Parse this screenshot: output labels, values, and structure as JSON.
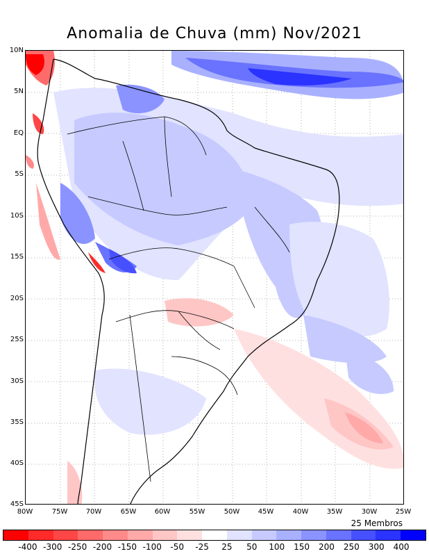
{
  "title": "Anomalia de Chuva (mm) Nov/2021",
  "members_label": "25 Membros",
  "lat_labels": [
    "10N",
    "5N",
    "EQ",
    "5S",
    "10S",
    "15S",
    "20S",
    "25S",
    "30S",
    "35S",
    "40S",
    "45S"
  ],
  "lon_labels": [
    "80W",
    "75W",
    "70W",
    "65W",
    "60W",
    "55W",
    "50W",
    "45W",
    "40W",
    "35W",
    "30W",
    "25W"
  ],
  "colorbar": {
    "labels": [
      "-400",
      "-300",
      "-250",
      "-200",
      "-150",
      "-100",
      "-50",
      "-25",
      "25",
      "50",
      "100",
      "150",
      "200",
      "250",
      "300",
      "400"
    ],
    "colors": [
      "#ff0000",
      "#ff2a2a",
      "#ff4646",
      "#ff6a6a",
      "#ff8a8a",
      "#ffa9a9",
      "#ffc6c6",
      "#ffe0e0",
      "#ffffff",
      "#e1e3ff",
      "#c6caff",
      "#a9b1ff",
      "#8a93ff",
      "#6a73ff",
      "#4650ff",
      "#2a33ff",
      "#0000ff"
    ]
  }
}
